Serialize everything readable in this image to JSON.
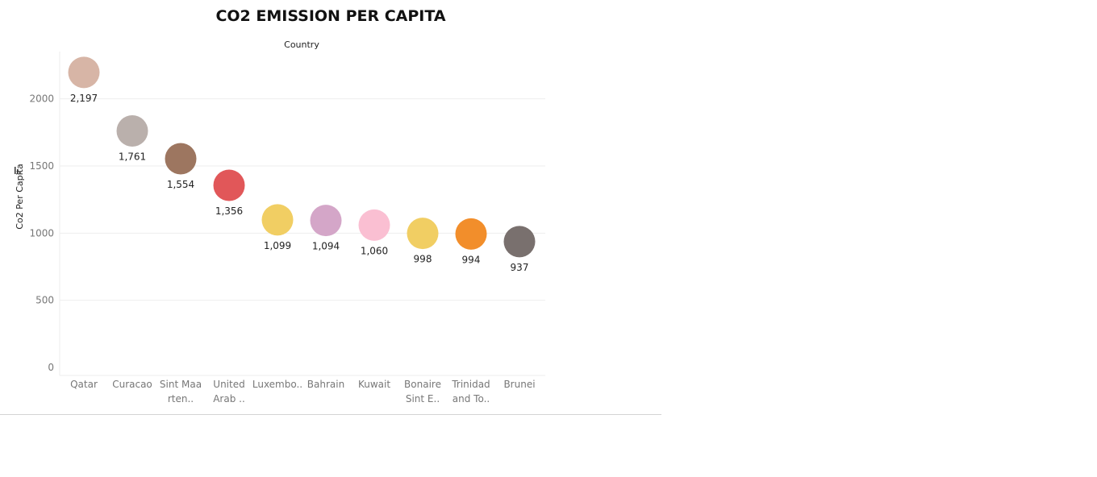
{
  "chart_data": {
    "type": "scatter",
    "title": "CO2 EMISSION PER CAPITA",
    "header_label": "Country",
    "ylabel": "Co2 Per Capita",
    "ylim": [
      0,
      2400
    ],
    "yticks": [
      0,
      500,
      1000,
      1500,
      2000
    ],
    "yticks_labels": [
      "0",
      "500",
      "1000",
      "1500",
      "2000"
    ],
    "grid": true,
    "categories": [
      [
        "Qatar"
      ],
      [
        "Curacao"
      ],
      [
        "Sint Maa",
        "rten.."
      ],
      [
        "United",
        "Arab .."
      ],
      [
        "Luxembo.."
      ],
      [
        "Bahrain"
      ],
      [
        "Kuwait"
      ],
      [
        "Bonaire",
        "Sint E.."
      ],
      [
        "Trinidad",
        "and To.."
      ],
      [
        "Brunei"
      ]
    ],
    "values": [
      2197,
      1761,
      1554,
      1356,
      1099,
      1094,
      1060,
      998,
      994,
      937
    ],
    "value_labels": [
      "2,197",
      "1,761",
      "1,554",
      "1,356",
      "1,099",
      "1,094",
      "1,060",
      "998",
      "994",
      "937"
    ],
    "colors": [
      "#d7b5a6",
      "#bab0ac",
      "#9d7660",
      "#e15759",
      "#f1ce63",
      "#d4a6c8",
      "#fabfd2",
      "#f1ce63",
      "#f28e2b",
      "#79706e"
    ]
  }
}
